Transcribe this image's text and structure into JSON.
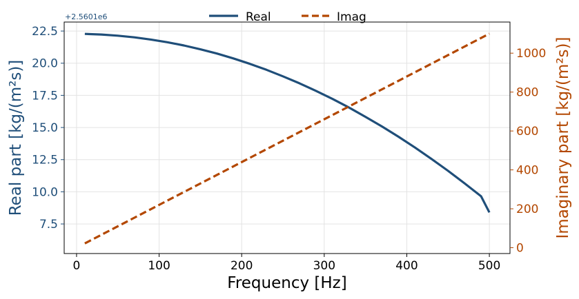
{
  "chart_data": {
    "type": "line",
    "xlabel": "Frequency [Hz]",
    "ylabel_left": "Real part [kg/(m²s)]",
    "ylabel_right": "Imaginary part [kg/(m²s)]",
    "offset_text": "+2.5601e6",
    "xlim": [
      -15,
      525
    ],
    "ylim_left": [
      5.2,
      23.2
    ],
    "ylim_right": [
      -30,
      1160
    ],
    "x_ticks": [
      0,
      100,
      200,
      300,
      400,
      500
    ],
    "y_left_ticks": [
      7.5,
      10.0,
      12.5,
      15.0,
      17.5,
      20.0,
      22.5
    ],
    "y_right_ticks": [
      0,
      200,
      400,
      600,
      800,
      1000
    ],
    "grid": true,
    "legend_position": "top-center",
    "series": [
      {
        "name": "Real",
        "axis": "left",
        "style": "solid",
        "color": "#1f4e79",
        "x": [
          10,
          30,
          50,
          70,
          90,
          110,
          130,
          150,
          170,
          190,
          210,
          230,
          250,
          270,
          290,
          310,
          330,
          350,
          370,
          390,
          410,
          430,
          450,
          470,
          490,
          500
        ],
        "y": [
          22.28,
          22.23,
          22.14,
          22.01,
          21.84,
          21.63,
          21.38,
          21.08,
          20.75,
          20.37,
          19.95,
          19.49,
          18.98,
          18.44,
          17.85,
          17.22,
          16.55,
          15.83,
          15.08,
          14.28,
          13.44,
          12.55,
          11.63,
          10.66,
          9.65,
          8.4
        ]
      },
      {
        "name": "Imag",
        "axis": "right",
        "style": "dashed",
        "color": "#b34700",
        "x": [
          10,
          500
        ],
        "y": [
          22,
          1100
        ]
      }
    ]
  }
}
